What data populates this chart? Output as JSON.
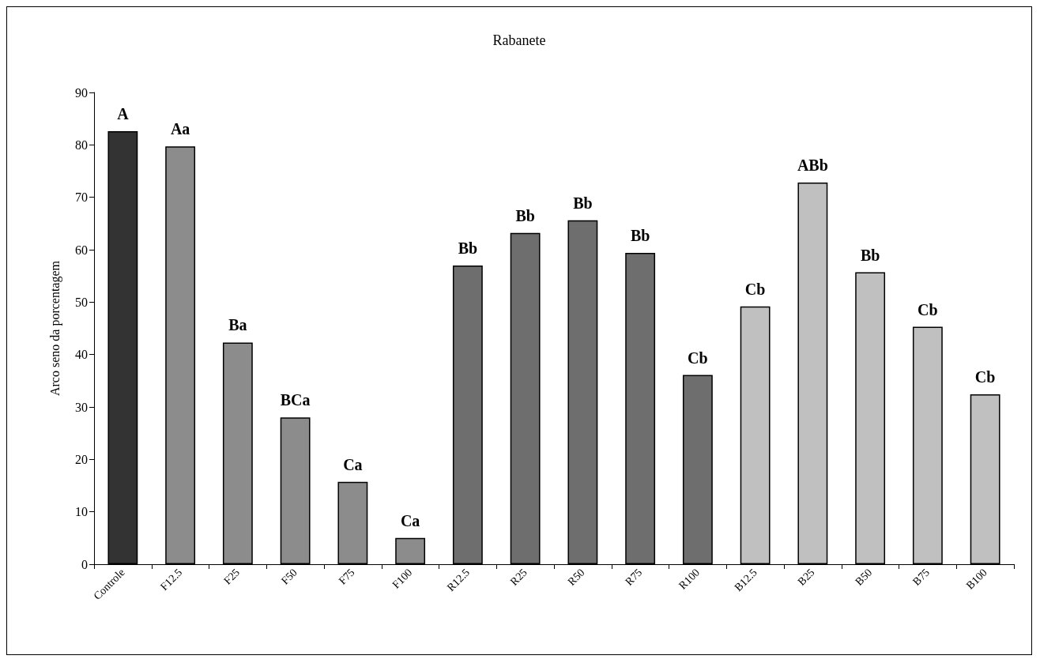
{
  "chart_data": {
    "type": "bar",
    "title": "Rabanete",
    "ylabel": "Arco seno da porcentagem",
    "categories": [
      "Controle",
      "F12.5",
      "F25",
      "F50",
      "F75",
      "F100",
      "R12.5",
      "R25",
      "R50",
      "R75",
      "R100",
      "B12.5",
      "B25",
      "B50",
      "B75",
      "B100"
    ],
    "values": [
      82.6,
      79.7,
      42.3,
      28.0,
      15.7,
      5.0,
      57.0,
      63.2,
      65.6,
      59.4,
      36.1,
      49.2,
      72.8,
      55.7,
      45.3,
      32.4
    ],
    "colors": [
      "#333333",
      "#8c8c8c",
      "#8c8c8c",
      "#8c8c8c",
      "#8c8c8c",
      "#8c8c8c",
      "#6e6e6e",
      "#6e6e6e",
      "#6e6e6e",
      "#6e6e6e",
      "#6e6e6e",
      "#c0c0c0",
      "#c0c0c0",
      "#c0c0c0",
      "#c0c0c0",
      "#c0c0c0"
    ],
    "value_labels": [
      "A",
      "Aa",
      "Ba",
      "BCa",
      "Ca",
      "Ca",
      "Bb",
      "Bb",
      "Bb",
      "Bb",
      "Cb",
      "Cb",
      "ABb",
      "Bb",
      "Cb",
      "Cb"
    ],
    "ylim": [
      0,
      90
    ],
    "yticks": [
      0,
      10,
      20,
      30,
      40,
      50,
      60,
      70,
      80,
      90
    ],
    "grid": false
  }
}
